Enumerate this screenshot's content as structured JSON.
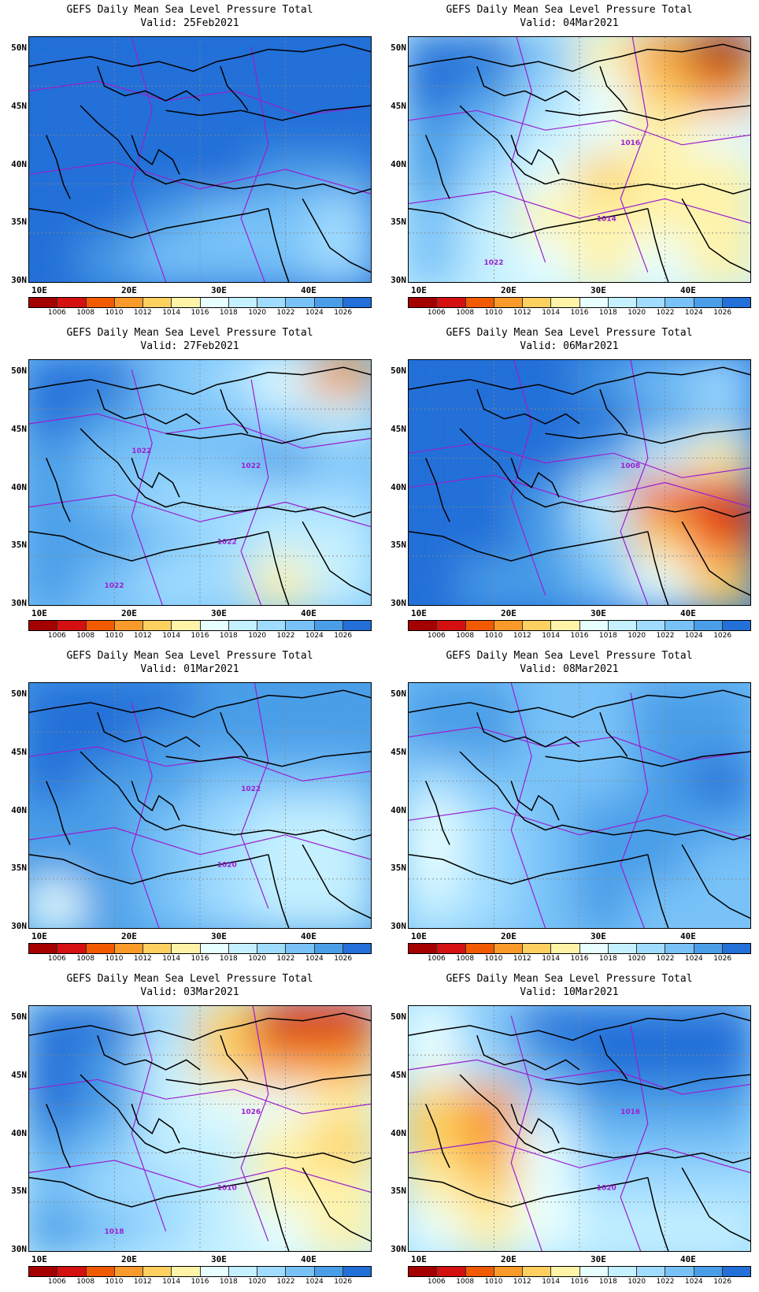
{
  "palette": [
    "#a50000",
    "#d41010",
    "#f25a00",
    "#f99a2a",
    "#fdd060",
    "#fff3a8",
    "#e8ffff",
    "#c4f0ff",
    "#a0dcff",
    "#78c2f8",
    "#4a9ee8",
    "#2270d8"
  ],
  "colorbar_labels": [
    "1006",
    "1008",
    "1010",
    "1012",
    "1014",
    "1016",
    "1018",
    "1020",
    "1022",
    "1024",
    "1026"
  ],
  "lat_labels": [
    "50N",
    "45N",
    "40N",
    "35N",
    "30N"
  ],
  "lon_labels": [
    "10E",
    "20E",
    "30E",
    "40E"
  ],
  "panels": [
    {
      "title": "GEFS Daily Mean Sea Level Pressure Total",
      "valid": "Valid: 25Feb2021",
      "field": [
        [
          11,
          11,
          11,
          11,
          11,
          11
        ],
        [
          11,
          11,
          11,
          11,
          11,
          11
        ],
        [
          11,
          11,
          11,
          11,
          11,
          11
        ],
        [
          11,
          11,
          11,
          11,
          10,
          10
        ],
        [
          11,
          11,
          10,
          9,
          9,
          8
        ],
        [
          11,
          10,
          9,
          9,
          9,
          8
        ]
      ],
      "contours": []
    },
    {
      "title": "GEFS Daily Mean Sea Level Pressure Total",
      "valid": "Valid: 04Mar2021",
      "field": [
        [
          11,
          11,
          9,
          5,
          3,
          0
        ],
        [
          11,
          10,
          8,
          6,
          4,
          3
        ],
        [
          10,
          9,
          7,
          6,
          5,
          6
        ],
        [
          10,
          8,
          6,
          4,
          5,
          5
        ],
        [
          9,
          7,
          5,
          5,
          5,
          5
        ],
        [
          9,
          7,
          6,
          5,
          6,
          5
        ]
      ],
      "contours": [
        "1016",
        "1014",
        "1022"
      ]
    },
    {
      "title": "GEFS Daily Mean Sea Level Pressure Total",
      "valid": "Valid: 27Feb2021",
      "field": [
        [
          11,
          11,
          9,
          8,
          6,
          3
        ],
        [
          11,
          10,
          9,
          9,
          8,
          7
        ],
        [
          10,
          9,
          9,
          9,
          10,
          9
        ],
        [
          10,
          9,
          8,
          8,
          8,
          8
        ],
        [
          10,
          10,
          9,
          8,
          7,
          7
        ],
        [
          10,
          9,
          8,
          8,
          5,
          7
        ]
      ],
      "contours": [
        "1022",
        "1022",
        "1022",
        "1022"
      ]
    },
    {
      "title": "GEFS Daily Mean Sea Level Pressure Total",
      "valid": "Valid: 06Mar2021",
      "field": [
        [
          11,
          11,
          11,
          10,
          9,
          8
        ],
        [
          11,
          11,
          11,
          11,
          10,
          9
        ],
        [
          11,
          11,
          11,
          10,
          7,
          5
        ],
        [
          11,
          11,
          10,
          7,
          2,
          1
        ],
        [
          11,
          11,
          10,
          8,
          4,
          2
        ],
        [
          11,
          10,
          10,
          9,
          6,
          4
        ]
      ],
      "contours": [
        "1008"
      ]
    },
    {
      "title": "GEFS Daily Mean Sea Level Pressure Total",
      "valid": "Valid: 01Mar2021",
      "field": [
        [
          11,
          11,
          11,
          10,
          10,
          10
        ],
        [
          11,
          11,
          10,
          10,
          10,
          10
        ],
        [
          11,
          10,
          10,
          9,
          9,
          9
        ],
        [
          10,
          10,
          9,
          8,
          7,
          7
        ],
        [
          10,
          10,
          9,
          8,
          7,
          7
        ],
        [
          6,
          10,
          9,
          8,
          7,
          7
        ]
      ],
      "contours": [
        "1022",
        "1020"
      ]
    },
    {
      "title": "GEFS Daily Mean Sea Level Pressure Total",
      "valid": "Valid: 08Mar2021",
      "field": [
        [
          10,
          10,
          9,
          9,
          10,
          10
        ],
        [
          10,
          10,
          9,
          9,
          10,
          10
        ],
        [
          8,
          9,
          9,
          9,
          10,
          11
        ],
        [
          6,
          8,
          9,
          10,
          10,
          10
        ],
        [
          6,
          8,
          9,
          10,
          10,
          9
        ],
        [
          7,
          8,
          9,
          10,
          9,
          9
        ]
      ],
      "contours": []
    },
    {
      "title": "GEFS Daily Mean Sea Level Pressure Total",
      "valid": "Valid: 03Mar2021",
      "field": [
        [
          11,
          11,
          8,
          4,
          1,
          1
        ],
        [
          11,
          10,
          7,
          4,
          3,
          3
        ],
        [
          11,
          10,
          7,
          6,
          6,
          5
        ],
        [
          10,
          9,
          7,
          7,
          5,
          4
        ],
        [
          9,
          8,
          8,
          7,
          5,
          5
        ],
        [
          10,
          9,
          8,
          7,
          6,
          5
        ]
      ],
      "contours": [
        "1026",
        "1010",
        "1018"
      ]
    },
    {
      "title": "GEFS Daily Mean Sea Level Pressure Total",
      "valid": "Valid: 10Mar2021",
      "field": [
        [
          6,
          9,
          11,
          11,
          11,
          11
        ],
        [
          6,
          8,
          10,
          11,
          11,
          11
        ],
        [
          4,
          3,
          8,
          10,
          10,
          10
        ],
        [
          4,
          3,
          6,
          9,
          9,
          9
        ],
        [
          5,
          4,
          6,
          8,
          8,
          8
        ],
        [
          6,
          5,
          6,
          7,
          7,
          7
        ]
      ],
      "contours": [
        "1016",
        "1020"
      ]
    }
  ]
}
